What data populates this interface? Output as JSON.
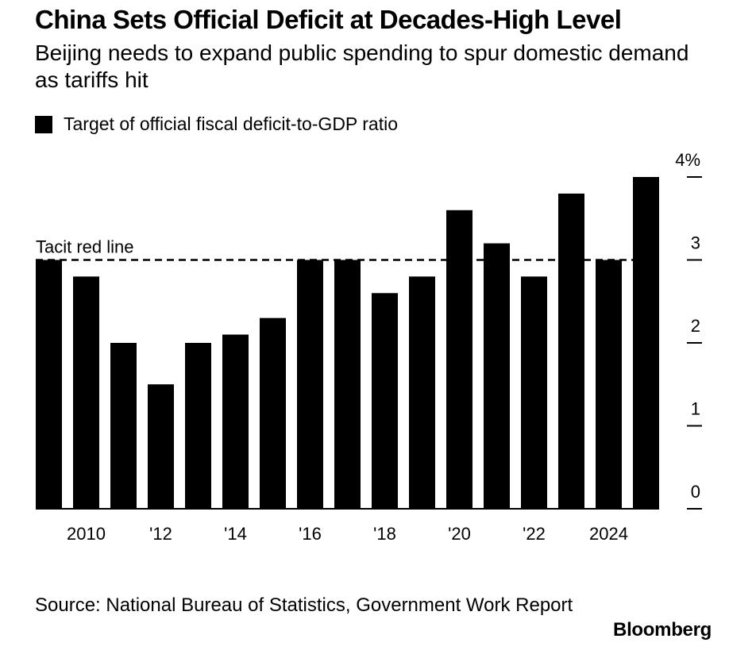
{
  "chart_data": {
    "type": "bar",
    "title": "China Sets Official Deficit at Decades-High Level",
    "subtitle": "Beijing needs to expand public spending to spur domestic demand as tariffs hit",
    "legend": [
      "Target of official fiscal deficit-to-GDP ratio"
    ],
    "legend_placement": "top-left",
    "categories": [
      2009,
      2010,
      2011,
      2012,
      2013,
      2014,
      2015,
      2016,
      2017,
      2018,
      2019,
      2020,
      2021,
      2022,
      2023,
      2024,
      2025
    ],
    "values": [
      3.0,
      2.8,
      2.0,
      1.5,
      2.0,
      2.1,
      2.3,
      3.0,
      3.0,
      2.6,
      2.8,
      3.6,
      3.2,
      2.8,
      3.8,
      3.0,
      4.0
    ],
    "x_tick_labels": [
      {
        "year": 2010,
        "label": "2010"
      },
      {
        "year": 2012,
        "label": "'12"
      },
      {
        "year": 2014,
        "label": "'14"
      },
      {
        "year": 2016,
        "label": "'16"
      },
      {
        "year": 2018,
        "label": "'18"
      },
      {
        "year": 2020,
        "label": "'20"
      },
      {
        "year": 2022,
        "label": "'22"
      },
      {
        "year": 2024,
        "label": "2024"
      }
    ],
    "y_ticks": [
      {
        "value": 0,
        "label": "0"
      },
      {
        "value": 1,
        "label": "1"
      },
      {
        "value": 2,
        "label": "2"
      },
      {
        "value": 3,
        "label": "3"
      },
      {
        "value": 4,
        "label": "4%"
      }
    ],
    "ylim": [
      0,
      4
    ],
    "y_axis_side": "right",
    "grid": false,
    "annotation": {
      "label": "Tacit red line",
      "value": 3
    },
    "bar_color": "#000000",
    "source": "Source: National Bureau of Statistics, Government Work Report",
    "brand": "Bloomberg"
  }
}
